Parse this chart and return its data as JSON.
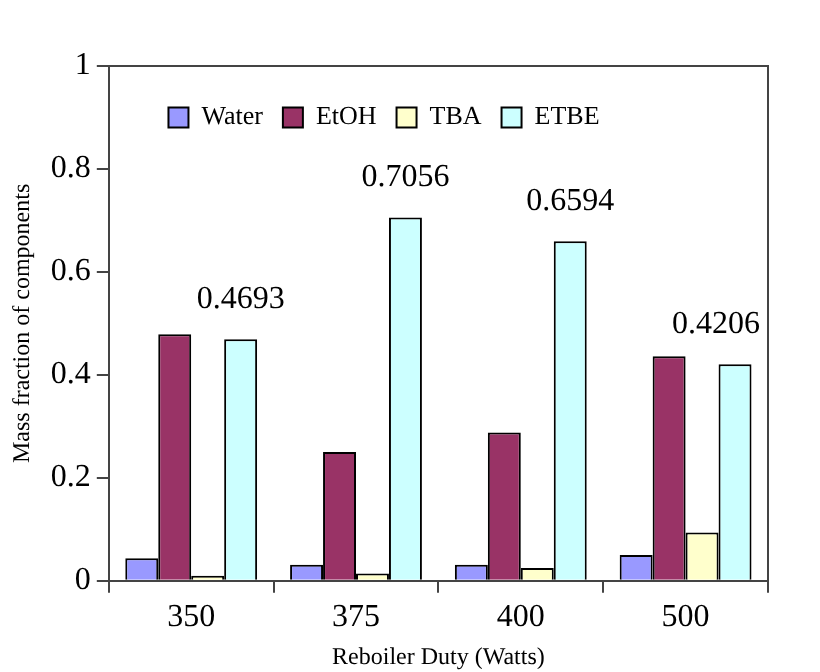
{
  "chart_data": {
    "type": "bar",
    "xlabel": "Reboiler Duty (Watts)",
    "ylabel": "Mass fraction of components",
    "categories": [
      "350",
      "375",
      "400",
      "500"
    ],
    "series": [
      {
        "name": "Water",
        "color": "#9999ff",
        "values": [
          0.044,
          0.031,
          0.031,
          0.05
        ]
      },
      {
        "name": "EtOH",
        "color": "#993366",
        "values": [
          0.479,
          0.25,
          0.288,
          0.436
        ]
      },
      {
        "name": "TBA",
        "color": "#ffffcc",
        "values": [
          0.01,
          0.014,
          0.025,
          0.094
        ]
      },
      {
        "name": "ETBE",
        "color": "#ccffff",
        "values": [
          0.4693,
          0.7056,
          0.6594,
          0.4206
        ],
        "value_labels": [
          "0.4693",
          "0.7056",
          "0.6594",
          "0.4206"
        ]
      }
    ],
    "ylim": [
      0,
      1
    ],
    "yticks": [
      0,
      0.2,
      0.4,
      0.6,
      0.8,
      1
    ],
    "grid": false,
    "legend": "top"
  }
}
